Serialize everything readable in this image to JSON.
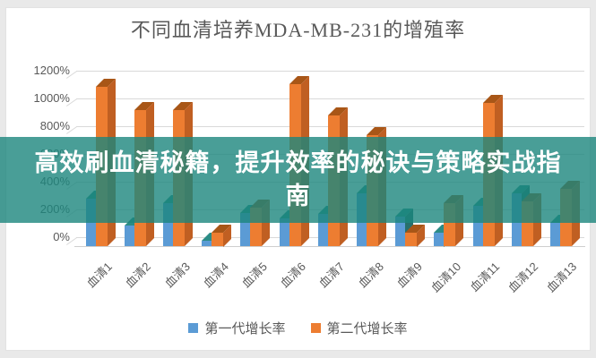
{
  "page": {
    "title": "不同血清培养MDA-MB-231的增殖率"
  },
  "overlay": {
    "text": "高效刷血清秘籍，提升效率的秘诀与策略实战指南",
    "band_color": "#1B867D",
    "text_color": "#FFFFFF"
  },
  "chart_data": {
    "type": "bar",
    "title": "不同血清培养MDA-MB-231的增殖率",
    "xlabel": "",
    "ylabel": "",
    "ylim": [
      0,
      1200
    ],
    "grid": true,
    "legend_position": "bottom",
    "yticks": [
      "0%",
      "200%",
      "400%",
      "600%",
      "800%",
      "1000%",
      "1200%"
    ],
    "categories": [
      "血清1",
      "血清2",
      "血清3",
      "血清4",
      "血清5",
      "血清6",
      "血清7",
      "血清8",
      "血清9",
      "血清10",
      "血清11",
      "血清12",
      "血清13"
    ],
    "series": [
      {
        "name": "第一代增长率",
        "color": "#5B9BD5",
        "top_color": "#2B8C86",
        "side_color": "#27706C",
        "values": [
          340,
          150,
          310,
          40,
          240,
          200,
          230,
          380,
          210,
          100,
          290,
          380,
          170
        ]
      },
      {
        "name": "第二代增长率",
        "color": "#ED7D31",
        "top_color": "#A85617",
        "side_color": "#C05F22",
        "values": [
          1150,
          980,
          980,
          100,
          280,
          1170,
          940,
          800,
          100,
          310,
          1030,
          320,
          410
        ]
      }
    ]
  }
}
